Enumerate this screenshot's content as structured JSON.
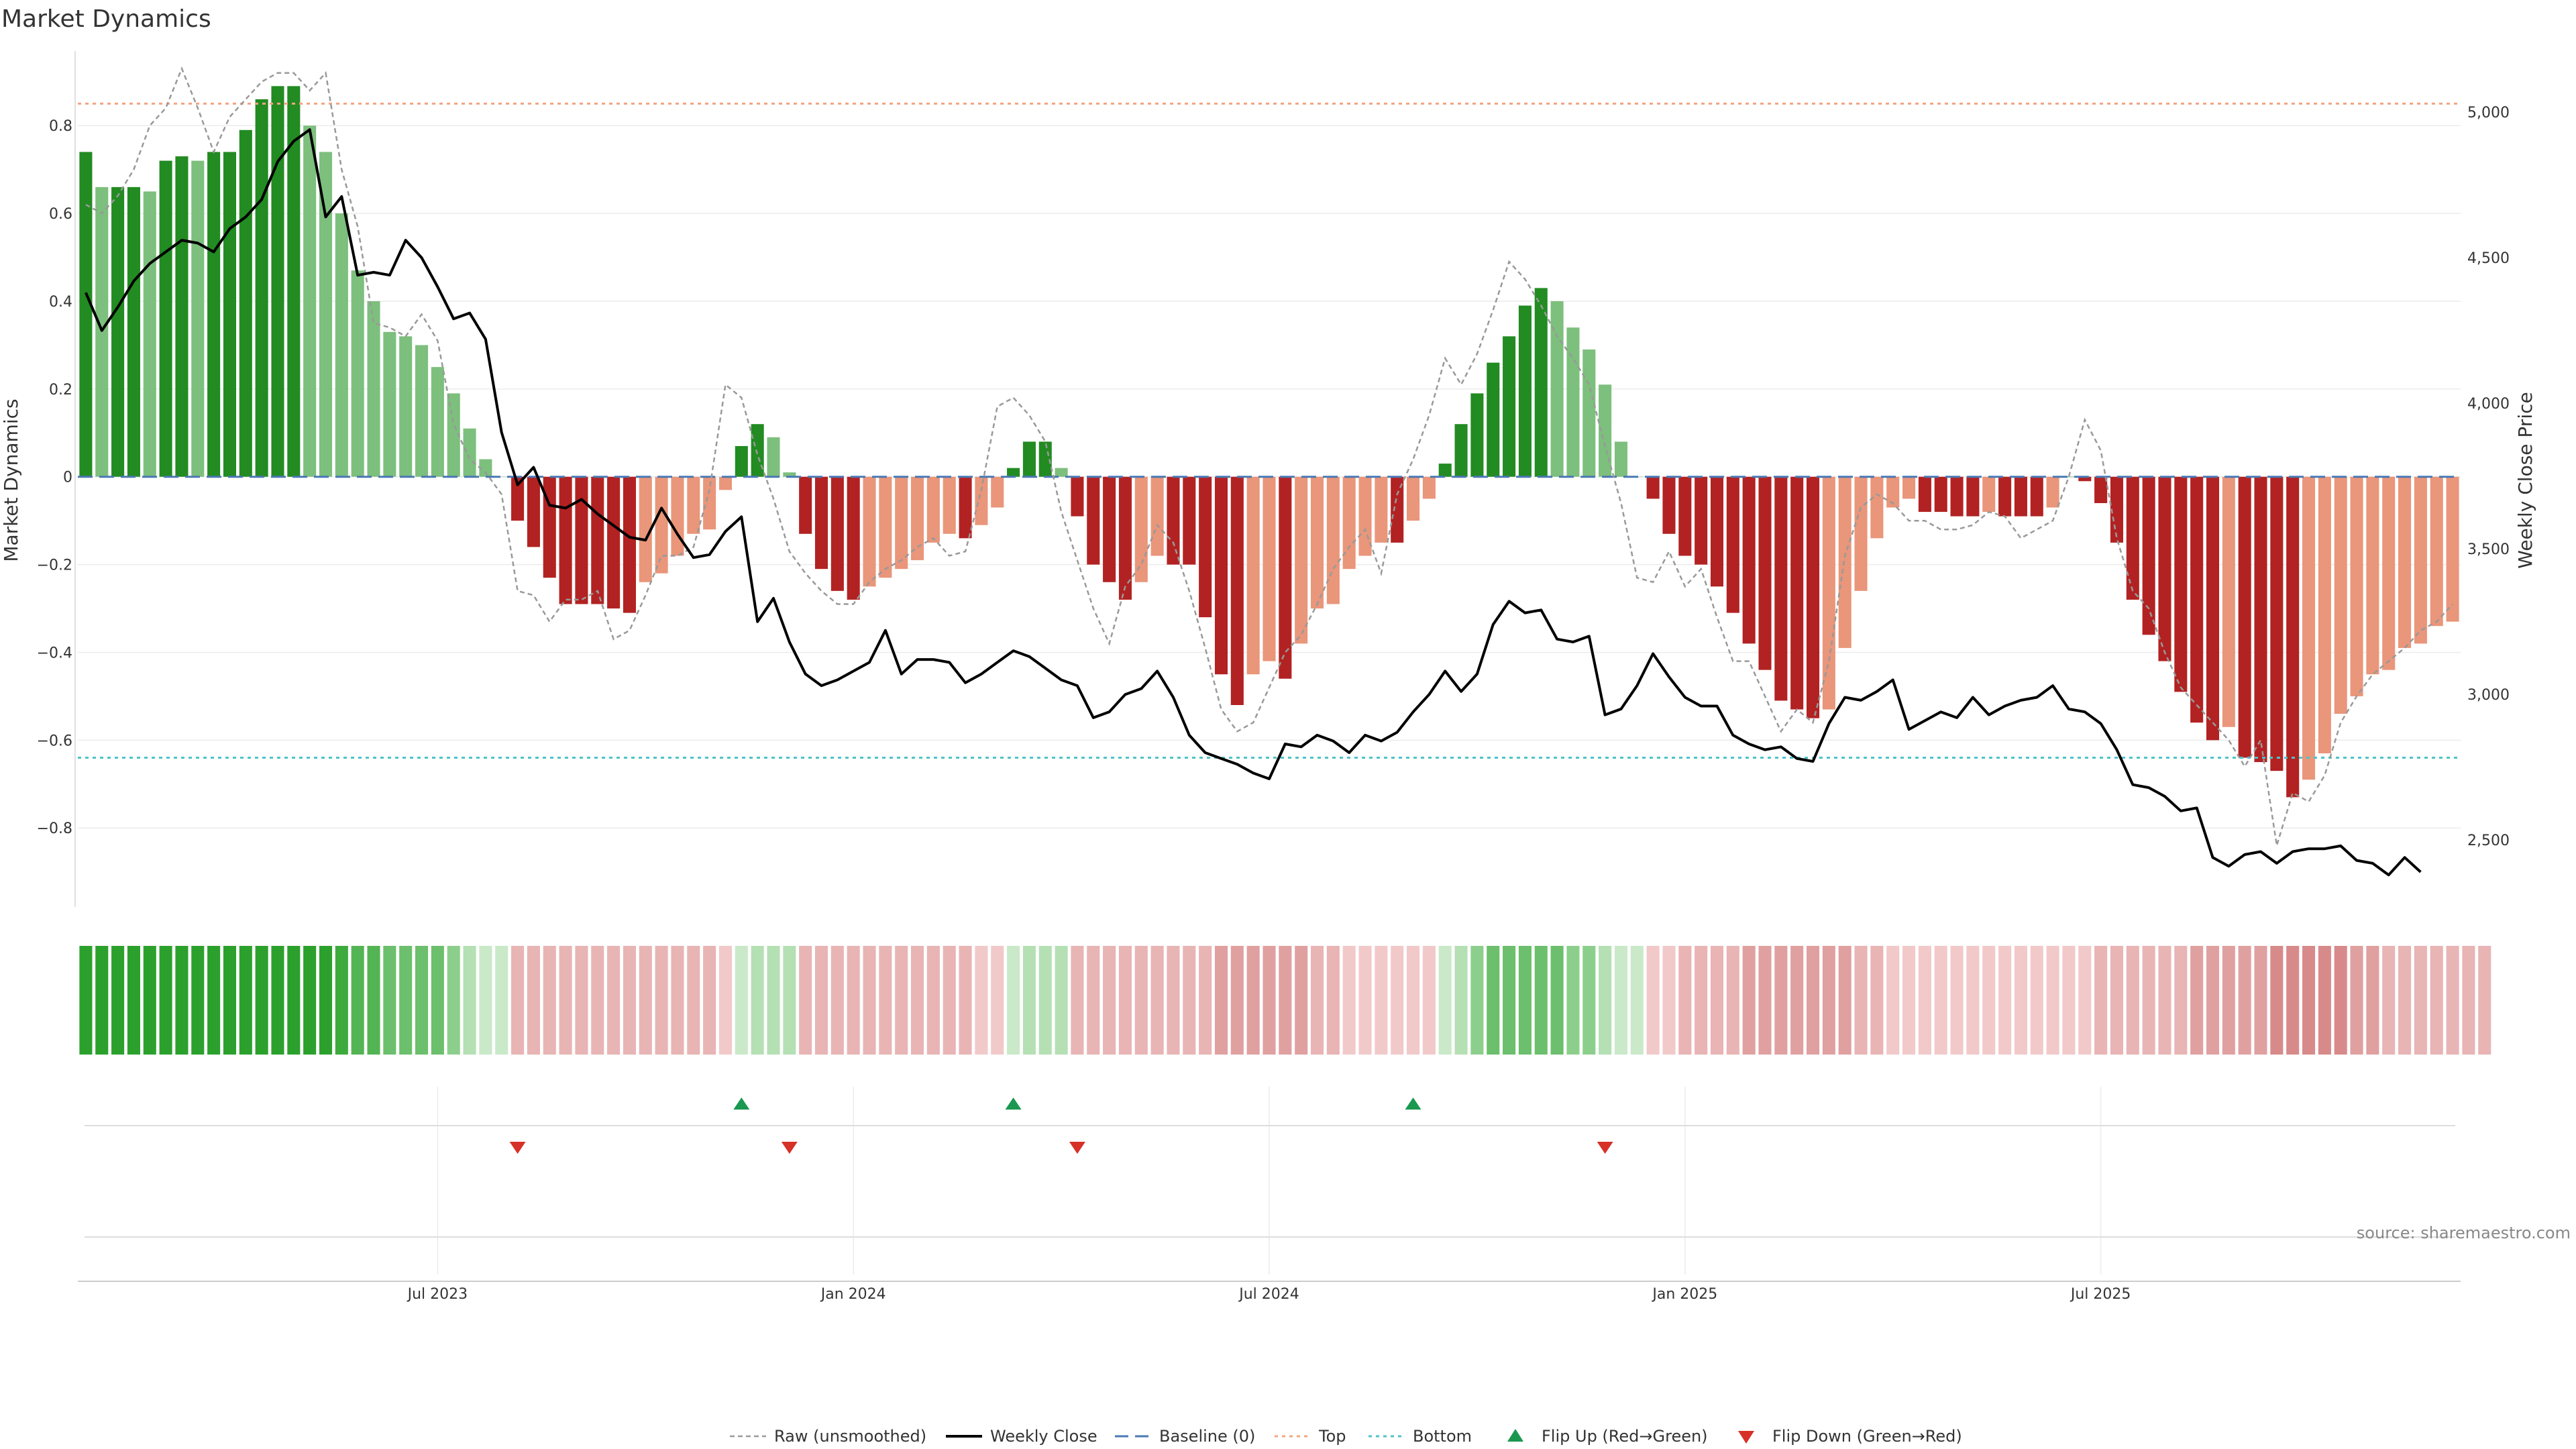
{
  "chart_data": {
    "type": "bar",
    "title": "Market Dynamics",
    "ylabel": "Market Dynamics",
    "y2label": "Weekly Close Price",
    "source": "source: sharemaestro.com",
    "ylim": [
      -0.98,
      0.97
    ],
    "y2lim": [
      2270,
      5210
    ],
    "yticks": [
      {
        "v": -0.8,
        "label": "−0.8"
      },
      {
        "v": -0.6,
        "label": "−0.6"
      },
      {
        "v": -0.4,
        "label": "−0.4"
      },
      {
        "v": -0.2,
        "label": "−0.2"
      },
      {
        "v": 0,
        "label": "0"
      },
      {
        "v": 0.2,
        "label": "0.2"
      },
      {
        "v": 0.4,
        "label": "0.4"
      },
      {
        "v": 0.6,
        "label": "0.6"
      },
      {
        "v": 0.8,
        "label": "0.8"
      }
    ],
    "y2ticks": [
      {
        "v": 2500,
        "label": "2,500"
      },
      {
        "v": 3000,
        "label": "3,000"
      },
      {
        "v": 3500,
        "label": "3,500"
      },
      {
        "v": 4000,
        "label": "4,000"
      },
      {
        "v": 4500,
        "label": "4,500"
      },
      {
        "v": 5000,
        "label": "5,000"
      }
    ],
    "xticks": [
      {
        "index": 22,
        "label": "Jul 2023"
      },
      {
        "index": 48,
        "label": "Jan 2024"
      },
      {
        "index": 74,
        "label": "Jul 2024"
      },
      {
        "index": 100,
        "label": "Jan 2025"
      },
      {
        "index": 126,
        "label": "Jul 2025"
      }
    ],
    "top_level": 0.85,
    "bottom_level": -0.64,
    "baseline": 0,
    "bars": [
      0.74,
      0.66,
      0.66,
      0.66,
      0.65,
      0.72,
      0.73,
      0.72,
      0.74,
      0.74,
      0.79,
      0.86,
      0.89,
      0.89,
      0.8,
      0.74,
      0.6,
      0.47,
      0.4,
      0.33,
      0.32,
      0.3,
      0.25,
      0.19,
      0.11,
      0.04,
      0.0,
      -0.1,
      -0.16,
      -0.23,
      -0.29,
      -0.29,
      -0.29,
      -0.3,
      -0.31,
      -0.24,
      -0.22,
      -0.18,
      -0.13,
      -0.12,
      -0.03,
      0.07,
      0.12,
      0.09,
      0.01,
      -0.13,
      -0.21,
      -0.26,
      -0.28,
      -0.25,
      -0.23,
      -0.21,
      -0.19,
      -0.15,
      -0.13,
      -0.14,
      -0.11,
      -0.07,
      0.02,
      0.08,
      0.08,
      0.02,
      -0.09,
      -0.2,
      -0.24,
      -0.28,
      -0.24,
      -0.18,
      -0.2,
      -0.2,
      -0.32,
      -0.45,
      -0.52,
      -0.45,
      -0.42,
      -0.46,
      -0.38,
      -0.3,
      -0.29,
      -0.21,
      -0.18,
      -0.15,
      -0.15,
      -0.1,
      -0.05,
      0.03,
      0.12,
      0.19,
      0.26,
      0.32,
      0.39,
      0.43,
      0.4,
      0.34,
      0.29,
      0.21,
      0.08,
      0.0,
      -0.05,
      -0.13,
      -0.18,
      -0.2,
      -0.25,
      -0.31,
      -0.38,
      -0.44,
      -0.51,
      -0.53,
      -0.55,
      -0.53,
      -0.39,
      -0.26,
      -0.14,
      -0.07,
      -0.05,
      -0.08,
      -0.08,
      -0.09,
      -0.09,
      -0.08,
      -0.09,
      -0.09,
      -0.09,
      -0.07,
      0.0,
      -0.01,
      -0.06,
      -0.15,
      -0.28,
      -0.36,
      -0.42,
      -0.49,
      -0.56,
      -0.6,
      -0.57,
      -0.64,
      -0.65,
      -0.67,
      -0.73,
      -0.69,
      -0.63,
      -0.54,
      -0.5,
      -0.45,
      -0.44,
      -0.39,
      -0.38,
      -0.34,
      -0.33
    ],
    "series": [
      {
        "name": "Raw (unsmoothed)",
        "values": [
          0.62,
          0.6,
          0.64,
          0.7,
          0.8,
          0.84,
          0.93,
          0.84,
          0.74,
          0.82,
          0.86,
          0.9,
          0.92,
          0.92,
          0.88,
          0.92,
          0.7,
          0.57,
          0.35,
          0.34,
          0.32,
          0.37,
          0.31,
          0.12,
          0.04,
          0.01,
          -0.04,
          -0.26,
          -0.27,
          -0.33,
          -0.28,
          -0.28,
          -0.26,
          -0.37,
          -0.35,
          -0.27,
          -0.18,
          -0.18,
          -0.16,
          -0.03,
          0.21,
          0.18,
          0.05,
          -0.05,
          -0.17,
          -0.22,
          -0.26,
          -0.29,
          -0.29,
          -0.24,
          -0.21,
          -0.19,
          -0.16,
          -0.14,
          -0.18,
          -0.17,
          -0.03,
          0.16,
          0.18,
          0.14,
          0.08,
          -0.08,
          -0.19,
          -0.3,
          -0.38,
          -0.25,
          -0.2,
          -0.11,
          -0.15,
          -0.26,
          -0.39,
          -0.53,
          -0.58,
          -0.56,
          -0.48,
          -0.4,
          -0.36,
          -0.29,
          -0.21,
          -0.16,
          -0.12,
          -0.22,
          -0.04,
          0.04,
          0.14,
          0.27,
          0.21,
          0.28,
          0.38,
          0.49,
          0.45,
          0.39,
          0.32,
          0.27,
          0.21,
          0.07,
          -0.06,
          -0.23,
          -0.24,
          -0.17,
          -0.25,
          -0.21,
          -0.32,
          -0.42,
          -0.42,
          -0.5,
          -0.58,
          -0.53,
          -0.56,
          -0.42,
          -0.18,
          -0.07,
          -0.04,
          -0.06,
          -0.1,
          -0.1,
          -0.12,
          -0.12,
          -0.11,
          -0.08,
          -0.09,
          -0.14,
          -0.12,
          -0.1,
          0.0,
          0.13,
          0.06,
          -0.14,
          -0.26,
          -0.3,
          -0.4,
          -0.48,
          -0.52,
          -0.56,
          -0.6,
          -0.66,
          -0.6,
          -0.84,
          -0.72,
          -0.74,
          -0.68,
          -0.56,
          -0.5,
          -0.45,
          -0.42,
          -0.39,
          -0.35,
          -0.33,
          -0.29
        ]
      },
      {
        "name": "Weekly Close",
        "values": [
          4380,
          4250,
          4330,
          4420,
          4480,
          4520,
          4560,
          4550,
          4520,
          4600,
          4640,
          4700,
          4830,
          4900,
          4940,
          4640,
          4710,
          4440,
          4450,
          4440,
          4560,
          4500,
          4400,
          4290,
          4310,
          4220,
          3900,
          3720,
          3780,
          3650,
          3640,
          3670,
          3620,
          3580,
          3540,
          3530,
          3640,
          3550,
          3470,
          3480,
          3560,
          3610,
          3250,
          3330,
          3180,
          3070,
          3030,
          3050,
          3080,
          3110,
          3220,
          3070,
          3120,
          3120,
          3110,
          3040,
          3070,
          3110,
          3150,
          3130,
          3090,
          3050,
          3030,
          2920,
          2940,
          3000,
          3020,
          3080,
          2990,
          2860,
          2800,
          2780,
          2760,
          2730,
          2710,
          2830,
          2820,
          2860,
          2840,
          2800,
          2860,
          2840,
          2870,
          2940,
          3000,
          3080,
          3010,
          3070,
          3240,
          3320,
          3280,
          3290,
          3190,
          3180,
          3200,
          2930,
          2950,
          3030,
          3140,
          3060,
          2990,
          2960,
          2960,
          2860,
          2830,
          2810,
          2820,
          2780,
          2770,
          2900,
          2990,
          2980,
          3010,
          3050,
          2880,
          2910,
          2940,
          2920,
          2990,
          2930,
          2960,
          2980,
          2990,
          3030,
          2950,
          2940,
          2900,
          2810,
          2690,
          2680,
          2650,
          2600,
          2610,
          2440,
          2410,
          2450,
          2460,
          2420,
          2460,
          2470,
          2470,
          2480,
          2430,
          2420,
          2380,
          2440,
          2390
        ]
      }
    ],
    "flip_up": [
      41,
      58,
      83
    ],
    "flip_down": [
      27,
      44,
      62,
      95
    ],
    "regime_strip": {
      "green": [
        "#2ca02c",
        "#3daa3d",
        "#53b453",
        "#6cbf6c",
        "#8ccf8c",
        "#b4e0b4",
        "#c9e9c9"
      ],
      "red": [
        "#f1c9c9",
        "#e8b4b4",
        "#e0a0a0",
        "#d88a8a",
        "#cf7474"
      ],
      "levels": [
        6,
        6,
        6,
        6,
        6,
        6,
        6,
        6,
        6,
        6,
        6,
        6,
        6,
        6,
        6,
        6,
        5,
        4,
        4,
        3,
        3,
        3,
        3,
        2,
        1,
        0,
        0,
        -2,
        -2,
        -2,
        -2,
        -2,
        -2,
        -2,
        -2,
        -2,
        -2,
        -2,
        -2,
        -2,
        -1,
        0,
        1,
        1,
        1,
        -2,
        -2,
        -2,
        -2,
        -2,
        -2,
        -2,
        -2,
        -2,
        -2,
        -2,
        -1,
        -1,
        0,
        1,
        1,
        1,
        -2,
        -2,
        -2,
        -2,
        -2,
        -2,
        -2,
        -2,
        -2,
        -3,
        -3,
        -3,
        -3,
        -3,
        -3,
        -2,
        -2,
        -1,
        -1,
        -1,
        -1,
        -1,
        -1,
        0,
        1,
        2,
        3,
        3,
        3,
        3,
        3,
        2,
        2,
        1,
        0,
        0,
        -1,
        -1,
        -2,
        -2,
        -2,
        -2,
        -3,
        -3,
        -3,
        -3,
        -3,
        -3,
        -3,
        -2,
        -2,
        -1,
        -1,
        -1,
        -1,
        -1,
        -1,
        -1,
        -1,
        -1,
        -1,
        -1,
        -1,
        -1,
        -2,
        -2,
        -2,
        -2,
        -2,
        -2,
        -3,
        -3,
        -3,
        -3,
        -3,
        -4,
        -4,
        -4,
        -4,
        -4,
        -3,
        -3,
        -2,
        -2,
        -2,
        -2,
        -2,
        -2,
        -2
      ]
    },
    "colors": {
      "strong_green": "#228b22",
      "light_green": "#7dbf7d",
      "strong_red": "#b22222",
      "light_red": "#e9967a",
      "close_line": "#000000",
      "raw_line": "#999999",
      "baseline": "#4a78b5",
      "top": "#f4a582",
      "bottom": "#4dc3c9",
      "flip_up": "#1a9850",
      "flip_down": "#d73027",
      "grid": "#ececec"
    },
    "legend": [
      {
        "key": "raw",
        "label": "Raw (unsmoothed)"
      },
      {
        "key": "close",
        "label": "Weekly Close"
      },
      {
        "key": "baseline",
        "label": "Baseline (0)"
      },
      {
        "key": "top",
        "label": "Top"
      },
      {
        "key": "bottom",
        "label": "Bottom"
      },
      {
        "key": "flip_up",
        "label": "Flip Up (Red→Green)"
      },
      {
        "key": "flip_down",
        "label": "Flip Down (Green→Red)"
      }
    ]
  }
}
